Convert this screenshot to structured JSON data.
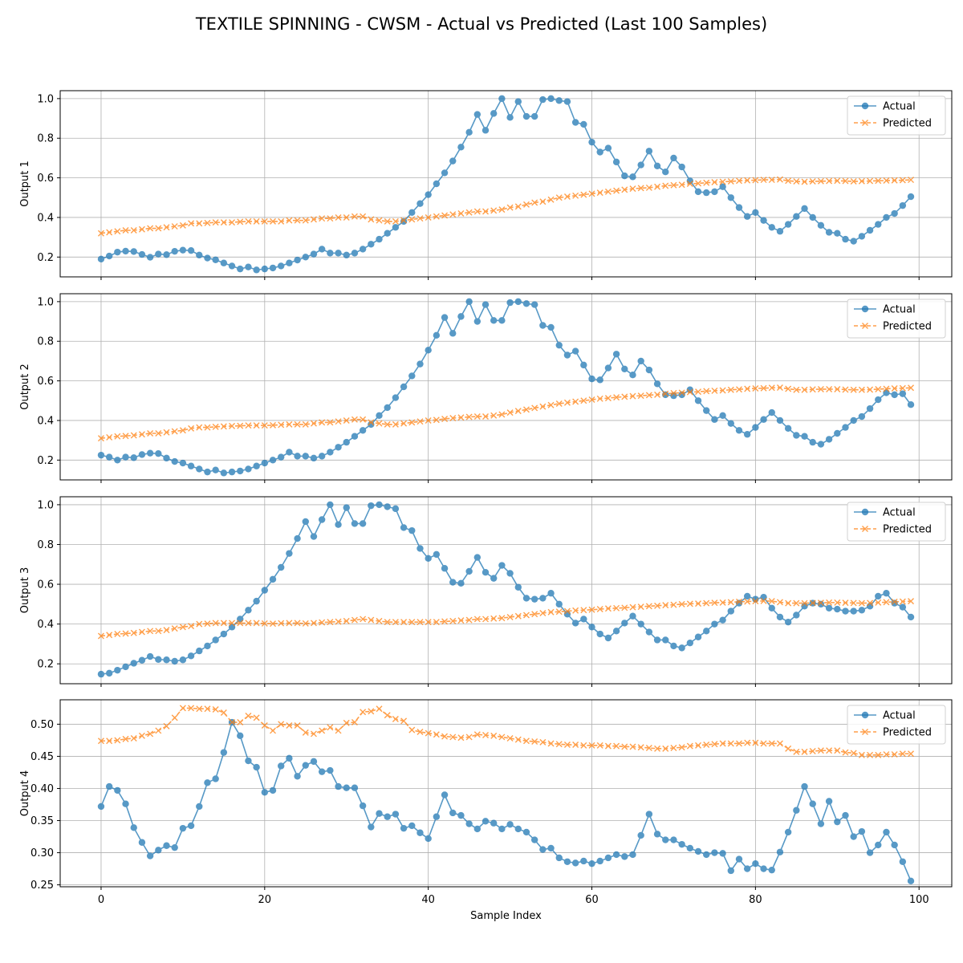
{
  "figure": {
    "title": "TEXTILE SPINNING - CWSM - Actual vs Predicted (Last 100 Samples)",
    "xlabel": "Sample Index"
  },
  "colors": {
    "actual": "#1f77b4",
    "predicted": "#ff7f0e",
    "grid": "#b0b0b0"
  },
  "chart_data": [
    {
      "type": "line",
      "ylabel": "Output 1",
      "xlim": [
        -5,
        104
      ],
      "ylim": [
        0.1,
        1.04
      ],
      "xticks": [
        0,
        20,
        40,
        60,
        80,
        100
      ],
      "yticks": [
        0.2,
        0.4,
        0.6,
        0.8,
        1.0
      ],
      "ytick_labels": [
        "0.2",
        "0.4",
        "0.6",
        "0.8",
        "1.0"
      ],
      "grid": true,
      "legend": "top-right",
      "series": [
        {
          "name": "Actual",
          "marker": "circle",
          "values": [
            0.19,
            0.205,
            0.225,
            0.23,
            0.228,
            0.213,
            0.199,
            0.215,
            0.212,
            0.229,
            0.235,
            0.233,
            0.21,
            0.195,
            0.186,
            0.17,
            0.155,
            0.14,
            0.15,
            0.135,
            0.14,
            0.145,
            0.155,
            0.17,
            0.185,
            0.2,
            0.215,
            0.24,
            0.22,
            0.22,
            0.21,
            0.22,
            0.24,
            0.265,
            0.29,
            0.32,
            0.35,
            0.38,
            0.425,
            0.47,
            0.515,
            0.57,
            0.625,
            0.685,
            0.755,
            0.83,
            0.92,
            0.84,
            0.925,
            1.0,
            0.905,
            0.985,
            0.91,
            0.91,
            0.995,
            1.0,
            0.99,
            0.985,
            0.88,
            0.87,
            0.78,
            0.73,
            0.75,
            0.68,
            0.61,
            0.605,
            0.665,
            0.735,
            0.66,
            0.63,
            0.7,
            0.655,
            0.585,
            0.53,
            0.525,
            0.53,
            0.555,
            0.5,
            0.45,
            0.405,
            0.425,
            0.385,
            0.35,
            0.33,
            0.365,
            0.405,
            0.445,
            0.4,
            0.36,
            0.325,
            0.32,
            0.29,
            0.28,
            0.305,
            0.335,
            0.365,
            0.4,
            0.42,
            0.46,
            0.505
          ]
        },
        {
          "name": "Predicted",
          "marker": "x",
          "values": [
            0.32,
            0.325,
            0.33,
            0.335,
            0.335,
            0.34,
            0.345,
            0.345,
            0.35,
            0.355,
            0.36,
            0.37,
            0.37,
            0.372,
            0.375,
            0.375,
            0.375,
            0.378,
            0.38,
            0.38,
            0.38,
            0.38,
            0.38,
            0.385,
            0.385,
            0.385,
            0.39,
            0.395,
            0.395,
            0.4,
            0.4,
            0.405,
            0.405,
            0.39,
            0.385,
            0.38,
            0.38,
            0.385,
            0.39,
            0.395,
            0.4,
            0.405,
            0.41,
            0.415,
            0.42,
            0.425,
            0.43,
            0.43,
            0.435,
            0.44,
            0.45,
            0.455,
            0.465,
            0.475,
            0.48,
            0.49,
            0.5,
            0.505,
            0.51,
            0.515,
            0.52,
            0.525,
            0.53,
            0.535,
            0.54,
            0.545,
            0.548,
            0.55,
            0.555,
            0.56,
            0.563,
            0.565,
            0.57,
            0.572,
            0.575,
            0.578,
            0.58,
            0.582,
            0.585,
            0.587,
            0.588,
            0.59,
            0.59,
            0.592,
            0.585,
            0.582,
            0.58,
            0.582,
            0.583,
            0.584,
            0.585,
            0.584,
            0.582,
            0.583,
            0.584,
            0.585,
            0.586,
            0.587,
            0.588,
            0.59
          ]
        }
      ]
    },
    {
      "type": "line",
      "ylabel": "Output 2",
      "xlim": [
        -5,
        104
      ],
      "ylim": [
        0.1,
        1.04
      ],
      "xticks": [
        0,
        20,
        40,
        60,
        80,
        100
      ],
      "yticks": [
        0.2,
        0.4,
        0.6,
        0.8,
        1.0
      ],
      "ytick_labels": [
        "0.2",
        "0.4",
        "0.6",
        "0.8",
        "1.0"
      ],
      "grid": true,
      "legend": "top-right",
      "series": [
        {
          "name": "Actual",
          "marker": "circle",
          "values": [
            0.225,
            0.215,
            0.2,
            0.215,
            0.212,
            0.228,
            0.235,
            0.233,
            0.21,
            0.193,
            0.185,
            0.17,
            0.155,
            0.14,
            0.15,
            0.135,
            0.14,
            0.145,
            0.155,
            0.17,
            0.185,
            0.2,
            0.215,
            0.24,
            0.22,
            0.22,
            0.21,
            0.22,
            0.24,
            0.265,
            0.29,
            0.32,
            0.35,
            0.38,
            0.425,
            0.465,
            0.515,
            0.57,
            0.625,
            0.685,
            0.755,
            0.83,
            0.92,
            0.84,
            0.925,
            1.0,
            0.9,
            0.985,
            0.905,
            0.905,
            0.995,
            1.0,
            0.99,
            0.985,
            0.88,
            0.87,
            0.78,
            0.73,
            0.75,
            0.68,
            0.61,
            0.605,
            0.665,
            0.735,
            0.66,
            0.63,
            0.7,
            0.655,
            0.585,
            0.53,
            0.525,
            0.53,
            0.555,
            0.5,
            0.45,
            0.405,
            0.425,
            0.385,
            0.35,
            0.33,
            0.365,
            0.405,
            0.44,
            0.4,
            0.36,
            0.325,
            0.32,
            0.29,
            0.28,
            0.305,
            0.335,
            0.365,
            0.4,
            0.42,
            0.46,
            0.505,
            0.54,
            0.53,
            0.535,
            0.48
          ]
        },
        {
          "name": "Predicted",
          "marker": "x",
          "values": [
            0.31,
            0.315,
            0.32,
            0.322,
            0.325,
            0.33,
            0.335,
            0.335,
            0.34,
            0.345,
            0.35,
            0.36,
            0.365,
            0.365,
            0.368,
            0.37,
            0.372,
            0.373,
            0.375,
            0.375,
            0.375,
            0.376,
            0.378,
            0.38,
            0.38,
            0.38,
            0.385,
            0.39,
            0.39,
            0.395,
            0.4,
            0.405,
            0.405,
            0.39,
            0.385,
            0.38,
            0.38,
            0.385,
            0.39,
            0.395,
            0.4,
            0.403,
            0.408,
            0.412,
            0.415,
            0.418,
            0.42,
            0.42,
            0.425,
            0.43,
            0.44,
            0.448,
            0.455,
            0.463,
            0.47,
            0.478,
            0.485,
            0.49,
            0.495,
            0.5,
            0.505,
            0.51,
            0.513,
            0.517,
            0.52,
            0.523,
            0.525,
            0.528,
            0.53,
            0.535,
            0.538,
            0.54,
            0.543,
            0.545,
            0.548,
            0.55,
            0.552,
            0.555,
            0.557,
            0.56,
            0.562,
            0.563,
            0.565,
            0.566,
            0.56,
            0.555,
            0.555,
            0.557,
            0.558,
            0.558,
            0.558,
            0.556,
            0.555,
            0.555,
            0.556,
            0.558,
            0.56,
            0.562,
            0.563,
            0.565
          ]
        }
      ]
    },
    {
      "type": "line",
      "ylabel": "Output 3",
      "xlim": [
        -5,
        104
      ],
      "ylim": [
        0.1,
        1.04
      ],
      "xticks": [
        0,
        20,
        40,
        60,
        80,
        100
      ],
      "yticks": [
        0.2,
        0.4,
        0.6,
        0.8,
        1.0
      ],
      "ytick_labels": [
        "0.2",
        "0.4",
        "0.6",
        "0.8",
        "1.0"
      ],
      "grid": true,
      "legend": "top-right",
      "series": [
        {
          "name": "Actual",
          "marker": "circle",
          "values": [
            0.148,
            0.153,
            0.168,
            0.185,
            0.203,
            0.218,
            0.237,
            0.222,
            0.22,
            0.213,
            0.22,
            0.24,
            0.265,
            0.29,
            0.32,
            0.35,
            0.385,
            0.425,
            0.47,
            0.515,
            0.57,
            0.625,
            0.685,
            0.755,
            0.83,
            0.915,
            0.84,
            0.925,
            1.0,
            0.9,
            0.985,
            0.905,
            0.905,
            0.995,
            1.0,
            0.99,
            0.98,
            0.885,
            0.87,
            0.78,
            0.73,
            0.75,
            0.68,
            0.61,
            0.605,
            0.665,
            0.735,
            0.66,
            0.63,
            0.695,
            0.655,
            0.585,
            0.53,
            0.525,
            0.53,
            0.555,
            0.5,
            0.45,
            0.405,
            0.425,
            0.385,
            0.35,
            0.33,
            0.365,
            0.405,
            0.44,
            0.4,
            0.36,
            0.32,
            0.32,
            0.29,
            0.28,
            0.305,
            0.335,
            0.365,
            0.4,
            0.42,
            0.465,
            0.505,
            0.54,
            0.525,
            0.535,
            0.48,
            0.435,
            0.41,
            0.445,
            0.49,
            0.505,
            0.5,
            0.48,
            0.475,
            0.465,
            0.465,
            0.47,
            0.49,
            0.54,
            0.555,
            0.505,
            0.485,
            0.435
          ]
        },
        {
          "name": "Predicted",
          "marker": "x",
          "values": [
            0.34,
            0.345,
            0.35,
            0.352,
            0.355,
            0.36,
            0.365,
            0.365,
            0.37,
            0.378,
            0.385,
            0.39,
            0.4,
            0.402,
            0.405,
            0.405,
            0.405,
            0.405,
            0.405,
            0.405,
            0.403,
            0.402,
            0.404,
            0.405,
            0.405,
            0.403,
            0.405,
            0.408,
            0.41,
            0.412,
            0.415,
            0.42,
            0.425,
            0.42,
            0.415,
            0.41,
            0.41,
            0.41,
            0.41,
            0.41,
            0.41,
            0.41,
            0.413,
            0.415,
            0.418,
            0.42,
            0.425,
            0.425,
            0.428,
            0.43,
            0.435,
            0.44,
            0.445,
            0.45,
            0.455,
            0.46,
            0.462,
            0.465,
            0.468,
            0.47,
            0.472,
            0.475,
            0.478,
            0.48,
            0.482,
            0.485,
            0.487,
            0.49,
            0.492,
            0.495,
            0.497,
            0.5,
            0.502,
            0.503,
            0.505,
            0.507,
            0.508,
            0.51,
            0.512,
            0.513,
            0.515,
            0.516,
            0.515,
            0.51,
            0.505,
            0.505,
            0.505,
            0.506,
            0.507,
            0.508,
            0.508,
            0.507,
            0.506,
            0.505,
            0.506,
            0.508,
            0.51,
            0.512,
            0.513,
            0.515
          ]
        }
      ]
    },
    {
      "type": "line",
      "ylabel": "Output 4",
      "xlim": [
        -5,
        104
      ],
      "ylim": [
        0.247,
        0.538
      ],
      "xticks": [
        0,
        20,
        40,
        60,
        80,
        100
      ],
      "yticks": [
        0.25,
        0.3,
        0.35,
        0.4,
        0.45,
        0.5
      ],
      "ytick_labels": [
        "0.25",
        "0.30",
        "0.35",
        "0.40",
        "0.45",
        "0.50"
      ],
      "grid": true,
      "legend": "top-right",
      "series": [
        {
          "name": "Actual",
          "marker": "circle",
          "values": [
            0.372,
            0.403,
            0.397,
            0.376,
            0.339,
            0.316,
            0.295,
            0.304,
            0.311,
            0.308,
            0.338,
            0.342,
            0.372,
            0.409,
            0.415,
            0.456,
            0.503,
            0.482,
            0.443,
            0.433,
            0.394,
            0.397,
            0.435,
            0.447,
            0.419,
            0.436,
            0.442,
            0.426,
            0.428,
            0.403,
            0.401,
            0.401,
            0.373,
            0.34,
            0.361,
            0.356,
            0.36,
            0.338,
            0.342,
            0.331,
            0.322,
            0.356,
            0.39,
            0.362,
            0.358,
            0.345,
            0.337,
            0.349,
            0.346,
            0.337,
            0.344,
            0.337,
            0.332,
            0.32,
            0.305,
            0.307,
            0.292,
            0.286,
            0.284,
            0.287,
            0.283,
            0.287,
            0.292,
            0.297,
            0.294,
            0.297,
            0.327,
            0.36,
            0.329,
            0.32,
            0.32,
            0.313,
            0.307,
            0.302,
            0.297,
            0.3,
            0.299,
            0.272,
            0.29,
            0.275,
            0.283,
            0.275,
            0.273,
            0.301,
            0.332,
            0.366,
            0.403,
            0.376,
            0.345,
            0.38,
            0.348,
            0.358,
            0.325,
            0.333,
            0.3,
            0.312,
            0.332,
            0.312,
            0.286,
            0.256
          ]
        },
        {
          "name": "Predicted",
          "marker": "x",
          "values": [
            0.474,
            0.474,
            0.475,
            0.477,
            0.478,
            0.482,
            0.485,
            0.49,
            0.497,
            0.51,
            0.525,
            0.525,
            0.524,
            0.524,
            0.523,
            0.518,
            0.503,
            0.503,
            0.513,
            0.51,
            0.498,
            0.49,
            0.5,
            0.498,
            0.498,
            0.487,
            0.485,
            0.49,
            0.495,
            0.49,
            0.502,
            0.503,
            0.519,
            0.52,
            0.524,
            0.514,
            0.508,
            0.505,
            0.491,
            0.488,
            0.486,
            0.484,
            0.481,
            0.48,
            0.479,
            0.48,
            0.484,
            0.483,
            0.482,
            0.48,
            0.478,
            0.476,
            0.474,
            0.473,
            0.472,
            0.47,
            0.469,
            0.468,
            0.468,
            0.467,
            0.467,
            0.467,
            0.466,
            0.466,
            0.465,
            0.465,
            0.464,
            0.463,
            0.462,
            0.462,
            0.463,
            0.464,
            0.466,
            0.467,
            0.468,
            0.469,
            0.47,
            0.47,
            0.47,
            0.471,
            0.471,
            0.47,
            0.47,
            0.47,
            0.462,
            0.457,
            0.457,
            0.458,
            0.459,
            0.459,
            0.459,
            0.456,
            0.455,
            0.452,
            0.452,
            0.452,
            0.453,
            0.453,
            0.454,
            0.454
          ]
        }
      ]
    }
  ]
}
